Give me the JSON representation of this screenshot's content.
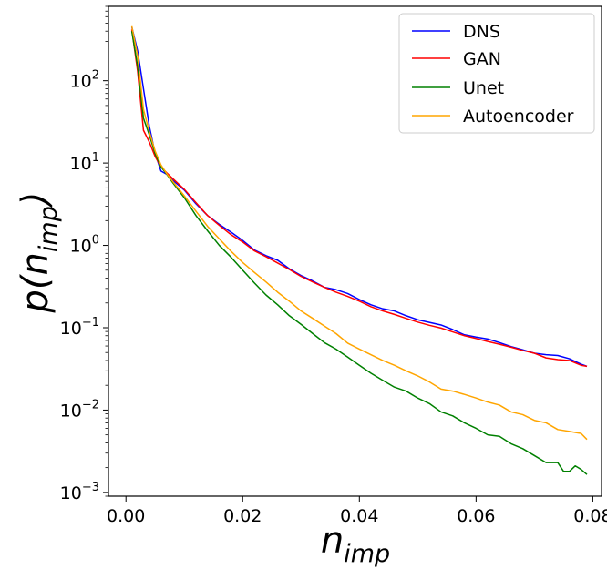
{
  "chart_data": {
    "type": "line",
    "title": "",
    "xlabel": "n",
    "xlabel_sub": "imp",
    "ylabel_prefix": "p(",
    "ylabel_var": "n",
    "ylabel_sub": "imp",
    "ylabel_suffix": ")",
    "xscale": "linear",
    "yscale": "log",
    "xlim": [
      -0.003,
      0.0815
    ],
    "ylim": [
      0.0009,
      800
    ],
    "grid": false,
    "legend_position": "top-right",
    "x_ticks": [
      {
        "value": 0.0,
        "label": "0.00"
      },
      {
        "value": 0.02,
        "label": "0.02"
      },
      {
        "value": 0.04,
        "label": "0.04"
      },
      {
        "value": 0.06,
        "label": "0.06"
      },
      {
        "value": 0.08,
        "label": "0.08"
      }
    ],
    "y_ticks": [
      {
        "value": 0.001,
        "base": "10",
        "exp": "−3"
      },
      {
        "value": 0.01,
        "base": "10",
        "exp": "−2"
      },
      {
        "value": 0.1,
        "base": "10",
        "exp": "−1"
      },
      {
        "value": 1,
        "base": "10",
        "exp": "0"
      },
      {
        "value": 10,
        "base": "10",
        "exp": "1"
      },
      {
        "value": 100,
        "base": "10",
        "exp": "2"
      }
    ],
    "series": [
      {
        "name": "DNS",
        "color": "#0000ff",
        "points": [
          [
            0.001,
            450
          ],
          [
            0.002,
            230
          ],
          [
            0.003,
            80
          ],
          [
            0.004,
            28
          ],
          [
            0.005,
            13
          ],
          [
            0.006,
            8
          ],
          [
            0.007,
            7.3
          ],
          [
            0.008,
            6.2
          ],
          [
            0.01,
            4.7
          ],
          [
            0.012,
            3.2
          ],
          [
            0.014,
            2.3
          ],
          [
            0.016,
            1.8
          ],
          [
            0.018,
            1.45
          ],
          [
            0.02,
            1.15
          ],
          [
            0.022,
            0.88
          ],
          [
            0.024,
            0.75
          ],
          [
            0.026,
            0.66
          ],
          [
            0.028,
            0.52
          ],
          [
            0.03,
            0.43
          ],
          [
            0.032,
            0.37
          ],
          [
            0.034,
            0.31
          ],
          [
            0.036,
            0.29
          ],
          [
            0.038,
            0.26
          ],
          [
            0.04,
            0.22
          ],
          [
            0.042,
            0.19
          ],
          [
            0.044,
            0.17
          ],
          [
            0.046,
            0.16
          ],
          [
            0.048,
            0.14
          ],
          [
            0.05,
            0.125
          ],
          [
            0.052,
            0.116
          ],
          [
            0.054,
            0.108
          ],
          [
            0.056,
            0.095
          ],
          [
            0.058,
            0.082
          ],
          [
            0.06,
            0.077
          ],
          [
            0.062,
            0.073
          ],
          [
            0.064,
            0.066
          ],
          [
            0.066,
            0.059
          ],
          [
            0.068,
            0.054
          ],
          [
            0.07,
            0.049
          ],
          [
            0.072,
            0.047
          ],
          [
            0.074,
            0.046
          ],
          [
            0.076,
            0.042
          ],
          [
            0.078,
            0.036
          ],
          [
            0.079,
            0.034
          ]
        ]
      },
      {
        "name": "GAN",
        "color": "#ff0000",
        "points": [
          [
            0.001,
            420
          ],
          [
            0.002,
            130
          ],
          [
            0.003,
            25
          ],
          [
            0.004,
            18
          ],
          [
            0.005,
            12
          ],
          [
            0.006,
            9
          ],
          [
            0.007,
            7.6
          ],
          [
            0.008,
            6.5
          ],
          [
            0.01,
            4.8
          ],
          [
            0.012,
            3.3
          ],
          [
            0.014,
            2.3
          ],
          [
            0.016,
            1.75
          ],
          [
            0.018,
            1.35
          ],
          [
            0.02,
            1.1
          ],
          [
            0.022,
            0.86
          ],
          [
            0.024,
            0.73
          ],
          [
            0.026,
            0.61
          ],
          [
            0.028,
            0.51
          ],
          [
            0.03,
            0.42
          ],
          [
            0.032,
            0.36
          ],
          [
            0.034,
            0.31
          ],
          [
            0.036,
            0.27
          ],
          [
            0.038,
            0.24
          ],
          [
            0.04,
            0.21
          ],
          [
            0.042,
            0.18
          ],
          [
            0.044,
            0.16
          ],
          [
            0.046,
            0.145
          ],
          [
            0.048,
            0.13
          ],
          [
            0.05,
            0.117
          ],
          [
            0.052,
            0.107
          ],
          [
            0.054,
            0.099
          ],
          [
            0.056,
            0.089
          ],
          [
            0.058,
            0.08
          ],
          [
            0.06,
            0.074
          ],
          [
            0.062,
            0.068
          ],
          [
            0.064,
            0.063
          ],
          [
            0.066,
            0.058
          ],
          [
            0.068,
            0.053
          ],
          [
            0.07,
            0.049
          ],
          [
            0.072,
            0.043
          ],
          [
            0.074,
            0.041
          ],
          [
            0.076,
            0.04
          ],
          [
            0.078,
            0.035
          ],
          [
            0.079,
            0.034
          ]
        ]
      },
      {
        "name": "Unet",
        "color": "#008000",
        "points": [
          [
            0.001,
            400
          ],
          [
            0.002,
            150
          ],
          [
            0.003,
            35
          ],
          [
            0.004,
            22
          ],
          [
            0.005,
            13
          ],
          [
            0.006,
            9
          ],
          [
            0.007,
            7.3
          ],
          [
            0.008,
            5.8
          ],
          [
            0.01,
            3.8
          ],
          [
            0.012,
            2.3
          ],
          [
            0.014,
            1.5
          ],
          [
            0.016,
            1.0
          ],
          [
            0.018,
            0.72
          ],
          [
            0.02,
            0.5
          ],
          [
            0.022,
            0.35
          ],
          [
            0.024,
            0.25
          ],
          [
            0.026,
            0.19
          ],
          [
            0.028,
            0.14
          ],
          [
            0.03,
            0.11
          ],
          [
            0.032,
            0.085
          ],
          [
            0.034,
            0.066
          ],
          [
            0.036,
            0.055
          ],
          [
            0.038,
            0.044
          ],
          [
            0.04,
            0.035
          ],
          [
            0.042,
            0.028
          ],
          [
            0.044,
            0.023
          ],
          [
            0.046,
            0.019
          ],
          [
            0.048,
            0.017
          ],
          [
            0.05,
            0.014
          ],
          [
            0.052,
            0.012
          ],
          [
            0.054,
            0.0095
          ],
          [
            0.056,
            0.0085
          ],
          [
            0.058,
            0.007
          ],
          [
            0.06,
            0.006
          ],
          [
            0.062,
            0.005
          ],
          [
            0.064,
            0.0048
          ],
          [
            0.066,
            0.0039
          ],
          [
            0.068,
            0.0034
          ],
          [
            0.07,
            0.0028
          ],
          [
            0.072,
            0.0023
          ],
          [
            0.073,
            0.0023
          ],
          [
            0.074,
            0.0023
          ],
          [
            0.075,
            0.0018
          ],
          [
            0.076,
            0.0018
          ],
          [
            0.077,
            0.0021
          ],
          [
            0.078,
            0.0019
          ],
          [
            0.079,
            0.00165
          ]
        ]
      },
      {
        "name": "Autoencoder",
        "color": "#ffa500",
        "points": [
          [
            0.001,
            460
          ],
          [
            0.002,
            200
          ],
          [
            0.003,
            45
          ],
          [
            0.004,
            24
          ],
          [
            0.005,
            14
          ],
          [
            0.006,
            9.5
          ],
          [
            0.007,
            7.4
          ],
          [
            0.008,
            6.0
          ],
          [
            0.01,
            4.0
          ],
          [
            0.012,
            2.6
          ],
          [
            0.014,
            1.7
          ],
          [
            0.016,
            1.2
          ],
          [
            0.018,
            0.85
          ],
          [
            0.02,
            0.62
          ],
          [
            0.022,
            0.47
          ],
          [
            0.024,
            0.36
          ],
          [
            0.026,
            0.27
          ],
          [
            0.028,
            0.21
          ],
          [
            0.03,
            0.16
          ],
          [
            0.032,
            0.13
          ],
          [
            0.034,
            0.105
          ],
          [
            0.036,
            0.085
          ],
          [
            0.038,
            0.065
          ],
          [
            0.04,
            0.055
          ],
          [
            0.042,
            0.047
          ],
          [
            0.044,
            0.04
          ],
          [
            0.046,
            0.035
          ],
          [
            0.048,
            0.03
          ],
          [
            0.05,
            0.026
          ],
          [
            0.052,
            0.022
          ],
          [
            0.054,
            0.018
          ],
          [
            0.056,
            0.017
          ],
          [
            0.058,
            0.0155
          ],
          [
            0.06,
            0.014
          ],
          [
            0.062,
            0.0125
          ],
          [
            0.064,
            0.0115
          ],
          [
            0.066,
            0.0095
          ],
          [
            0.068,
            0.0088
          ],
          [
            0.07,
            0.0075
          ],
          [
            0.072,
            0.007
          ],
          [
            0.074,
            0.0058
          ],
          [
            0.076,
            0.0055
          ],
          [
            0.078,
            0.0052
          ],
          [
            0.079,
            0.0044
          ]
        ]
      }
    ]
  }
}
